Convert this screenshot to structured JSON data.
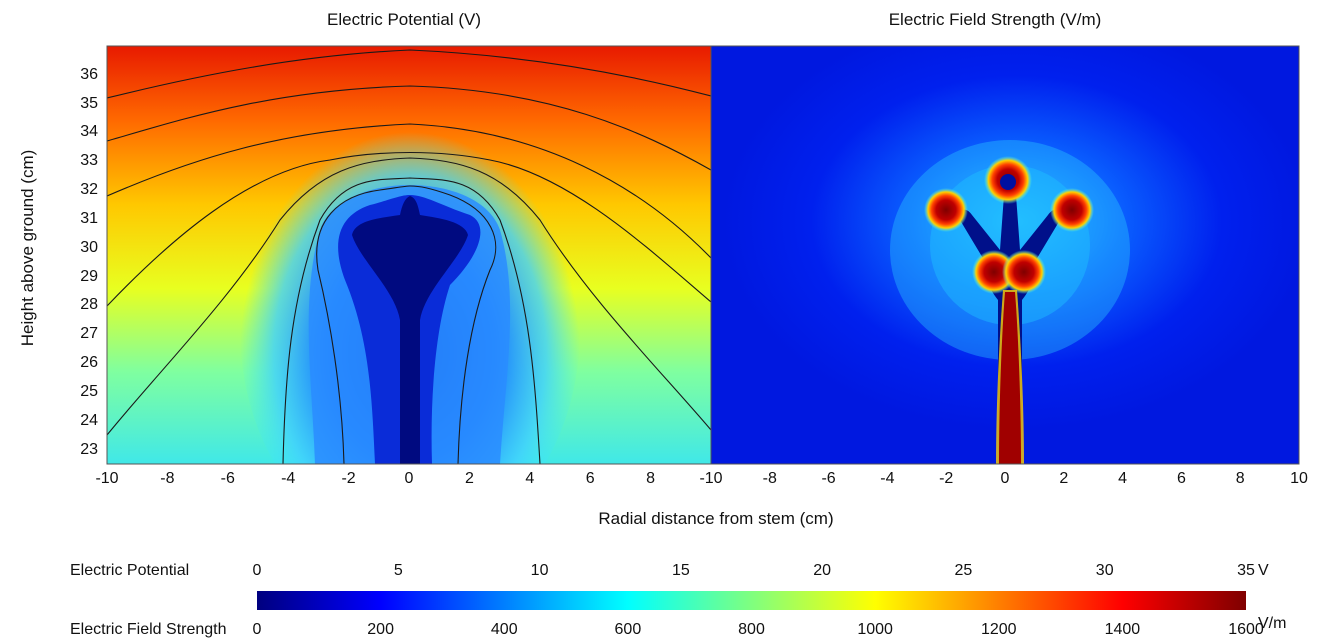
{
  "chart_data": [
    {
      "type": "heatmap",
      "title": "Electric Potential (V)",
      "xlabel": "Radial distance from stem (cm)",
      "ylabel": "Height above ground (cm)",
      "xlim": [
        -10,
        10
      ],
      "ylim": [
        22.5,
        37
      ],
      "x_ticks": [
        -10,
        -8,
        -6,
        -4,
        -2,
        0,
        2,
        4,
        6,
        8
      ],
      "y_ticks": [
        23,
        24,
        25,
        26,
        27,
        28,
        29,
        30,
        31,
        32,
        33,
        34,
        35,
        36
      ],
      "colorbar": {
        "label": "Electric Potential",
        "unit": "V",
        "range": [
          0,
          35
        ],
        "ticks": [
          0,
          5,
          10,
          15,
          20,
          25,
          30,
          35
        ]
      },
      "contours": true
    },
    {
      "type": "heatmap",
      "title": "Electric Field Strength (V/m)",
      "xlabel": "Radial distance from stem (cm)",
      "xlim": [
        -10,
        10
      ],
      "x_ticks": [
        -10,
        -8,
        -6,
        -4,
        -2,
        0,
        2,
        4,
        6,
        8,
        10
      ],
      "colorbar": {
        "label": "Electric Field Strength",
        "unit": "V/m",
        "range": [
          0,
          1600
        ],
        "ticks": [
          0,
          200,
          400,
          600,
          800,
          1000,
          1200,
          1400,
          1600
        ]
      }
    }
  ],
  "colors": {
    "scale": [
      "#00007f",
      "#0000ff",
      "#007fff",
      "#00ffff",
      "#7fff7f",
      "#ffff00",
      "#ff7f00",
      "#ff0000",
      "#7f0000"
    ]
  }
}
